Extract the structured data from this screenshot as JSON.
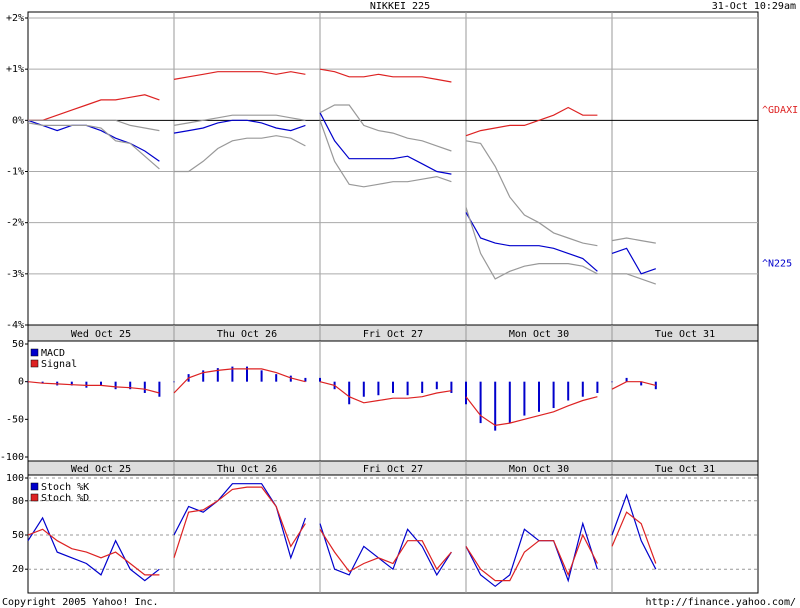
{
  "chart_data": [
    {
      "type": "line",
      "title": "NIKKEI 225",
      "subtitle": "31-Oct 10:29am",
      "categories": [
        "Wed Oct 25",
        "Thu Oct 26",
        "Fri Oct 27",
        "Mon Oct 30",
        "Tue Oct 31"
      ],
      "x": [
        0,
        0.1,
        0.2,
        0.3,
        0.4,
        0.5,
        0.6,
        0.7,
        0.8,
        0.9,
        0.95,
        1,
        1.1,
        1.2,
        1.3,
        1.4,
        1.5,
        1.6,
        1.7,
        1.8,
        1.9,
        1.95,
        2,
        2.1,
        2.2,
        2.3,
        2.4,
        2.5,
        2.6,
        2.7,
        2.8,
        2.9,
        2.95,
        3,
        3.1,
        3.2,
        3.3,
        3.4,
        3.5,
        3.6,
        3.7,
        3.8,
        3.9,
        3.95,
        4,
        4.1,
        4.2,
        4.3
      ],
      "xlim": [
        0,
        5
      ],
      "ylim": [
        -4,
        2
      ],
      "grid": true,
      "yticks": [
        {
          "value": 2,
          "label": "+2%"
        },
        {
          "value": 1,
          "label": "+1%"
        },
        {
          "value": 0,
          "label": "0%"
        },
        {
          "value": -1,
          "label": "-1%"
        },
        {
          "value": -2,
          "label": "-2%"
        },
        {
          "value": -3,
          "label": "-3%"
        },
        {
          "value": -4,
          "label": "-4%"
        }
      ],
      "series": [
        {
          "name": "^N225",
          "color": "#0000cc",
          "values": [
            0,
            -0.1,
            -0.2,
            -0.1,
            -0.1,
            -0.2,
            -0.35,
            -0.45,
            -0.6,
            -0.8,
            null,
            -0.25,
            -0.2,
            -0.15,
            -0.05,
            0,
            0,
            -0.05,
            -0.15,
            -0.2,
            -0.1,
            null,
            0.15,
            -0.4,
            -0.75,
            -0.75,
            -0.75,
            -0.75,
            -0.7,
            -0.85,
            -1.0,
            -1.05,
            null,
            -1.8,
            -2.3,
            -2.4,
            -2.45,
            -2.45,
            -2.45,
            -2.5,
            -2.6,
            -2.7,
            -2.95,
            null,
            -2.6,
            -2.5,
            -3.0,
            -2.9
          ]
        },
        {
          "name": "^GDAXI",
          "color": "#dd2222",
          "values": [
            0,
            0,
            0.1,
            0.2,
            0.3,
            0.4,
            0.4,
            0.45,
            0.5,
            0.4,
            null,
            0.8,
            0.85,
            0.9,
            0.95,
            0.95,
            0.95,
            0.95,
            0.9,
            0.95,
            0.9,
            null,
            1.0,
            0.95,
            0.85,
            0.85,
            0.9,
            0.85,
            0.85,
            0.85,
            0.8,
            0.75,
            null,
            -0.3,
            -0.2,
            -0.15,
            -0.1,
            -0.1,
            0,
            0.1,
            0.25,
            0.1,
            0.1,
            null,
            null,
            null,
            null,
            null
          ]
        },
        {
          "color": "#999999",
          "values": [
            0,
            0,
            0,
            0,
            0,
            0,
            0,
            -0.1,
            -0.15,
            -0.2,
            null,
            -0.1,
            -0.05,
            0,
            0.05,
            0.1,
            0.1,
            0.1,
            0.1,
            0.05,
            0,
            null,
            0.15,
            0.3,
            0.3,
            -0.1,
            -0.2,
            -0.25,
            -0.35,
            -0.4,
            -0.5,
            -0.6,
            null,
            -0.4,
            -0.45,
            -0.9,
            -1.5,
            -1.85,
            -2.0,
            -2.2,
            -2.3,
            -2.4,
            -2.45,
            null,
            -2.35,
            -2.3,
            -2.35,
            -2.4
          ]
        },
        {
          "color": "#999999",
          "values": [
            -0.05,
            -0.1,
            -0.1,
            -0.1,
            -0.1,
            -0.15,
            -0.4,
            -0.45,
            -0.7,
            -0.95,
            null,
            -1.0,
            -1.0,
            -0.8,
            -0.55,
            -0.4,
            -0.35,
            -0.35,
            -0.3,
            -0.35,
            -0.5,
            null,
            0,
            -0.8,
            -1.25,
            -1.3,
            -1.25,
            -1.2,
            -1.2,
            -1.15,
            -1.1,
            -1.2,
            null,
            -1.7,
            -2.6,
            -3.1,
            -2.95,
            -2.85,
            -2.8,
            -2.8,
            -2.8,
            -2.85,
            -3.0,
            null,
            -3.0,
            -3.0,
            -3.1,
            -3.2
          ]
        }
      ]
    },
    {
      "type": "combo",
      "legend": "top-left",
      "categories": [
        "Wed Oct 25",
        "Thu Oct 26",
        "Fri Oct 27",
        "Mon Oct 30",
        "Tue Oct 31"
      ],
      "x": [
        0,
        0.1,
        0.2,
        0.3,
        0.4,
        0.5,
        0.6,
        0.7,
        0.8,
        0.9,
        0.95,
        1,
        1.1,
        1.2,
        1.3,
        1.4,
        1.5,
        1.6,
        1.7,
        1.8,
        1.9,
        1.95,
        2,
        2.1,
        2.2,
        2.3,
        2.4,
        2.5,
        2.6,
        2.7,
        2.8,
        2.9,
        2.95,
        3,
        3.1,
        3.2,
        3.3,
        3.4,
        3.5,
        3.6,
        3.7,
        3.8,
        3.9,
        3.95,
        4,
        4.1,
        4.2,
        4.3
      ],
      "xlim": [
        0,
        5
      ],
      "ylim": [
        -100,
        50
      ],
      "yticks": [
        50,
        0,
        -50,
        -100
      ],
      "series": [
        {
          "name": "MACD",
          "type": "bar",
          "color": "#0000cc",
          "values": [
            0,
            -2,
            -5,
            -5,
            -8,
            -5,
            -10,
            -10,
            -15,
            -20,
            null,
            0,
            10,
            15,
            18,
            20,
            20,
            15,
            10,
            8,
            5,
            null,
            5,
            -10,
            -30,
            -20,
            -18,
            -15,
            -18,
            -15,
            -10,
            -15,
            null,
            -30,
            -55,
            -65,
            -55,
            -45,
            -40,
            -35,
            -25,
            -20,
            -15,
            null,
            0,
            5,
            -5,
            -10
          ]
        },
        {
          "name": "Signal",
          "type": "line",
          "color": "#dd2222",
          "values": [
            0,
            -2,
            -3,
            -4,
            -5,
            -5,
            -7,
            -8,
            -10,
            -15,
            null,
            -15,
            5,
            12,
            15,
            17,
            17,
            17,
            12,
            5,
            0,
            null,
            0,
            -5,
            -20,
            -28,
            -25,
            -22,
            -22,
            -20,
            -15,
            -12,
            null,
            -20,
            -45,
            -58,
            -55,
            -50,
            -45,
            -40,
            -32,
            -25,
            -20,
            null,
            -10,
            0,
            0,
            -5
          ]
        }
      ]
    },
    {
      "type": "line",
      "legend": "top-left",
      "grid": "dashed",
      "x": [
        0,
        0.1,
        0.2,
        0.3,
        0.4,
        0.5,
        0.6,
        0.7,
        0.8,
        0.9,
        0.95,
        1,
        1.1,
        1.2,
        1.3,
        1.4,
        1.5,
        1.6,
        1.7,
        1.8,
        1.9,
        1.95,
        2,
        2.1,
        2.2,
        2.3,
        2.4,
        2.5,
        2.6,
        2.7,
        2.8,
        2.9,
        2.95,
        3,
        3.1,
        3.2,
        3.3,
        3.4,
        3.5,
        3.6,
        3.7,
        3.8,
        3.9,
        3.95,
        4,
        4.1,
        4.2,
        4.3
      ],
      "xlim": [
        0,
        5
      ],
      "ylim": [
        0,
        100
      ],
      "yticks": [
        100,
        80,
        50,
        20
      ],
      "series": [
        {
          "name": "Stoch %K",
          "color": "#0000cc",
          "values": [
            45,
            65,
            35,
            30,
            25,
            15,
            45,
            20,
            10,
            20,
            null,
            50,
            75,
            70,
            80,
            95,
            95,
            95,
            75,
            30,
            65,
            null,
            60,
            20,
            15,
            40,
            30,
            20,
            55,
            40,
            15,
            35,
            null,
            40,
            15,
            5,
            15,
            55,
            45,
            45,
            10,
            60,
            20,
            null,
            50,
            85,
            45,
            20
          ]
        },
        {
          "name": "Stoch %D",
          "color": "#dd2222",
          "values": [
            50,
            55,
            45,
            38,
            35,
            30,
            35,
            25,
            15,
            15,
            null,
            30,
            70,
            72,
            80,
            90,
            92,
            92,
            75,
            40,
            60,
            null,
            55,
            35,
            18,
            25,
            30,
            25,
            45,
            45,
            20,
            35,
            null,
            40,
            20,
            10,
            10,
            35,
            45,
            45,
            15,
            50,
            25,
            null,
            40,
            70,
            60,
            25
          ]
        }
      ]
    }
  ],
  "footer": {
    "left": "Copyright 2005 Yahoo! Inc.",
    "right": "http://finance.yahoo.com/"
  }
}
